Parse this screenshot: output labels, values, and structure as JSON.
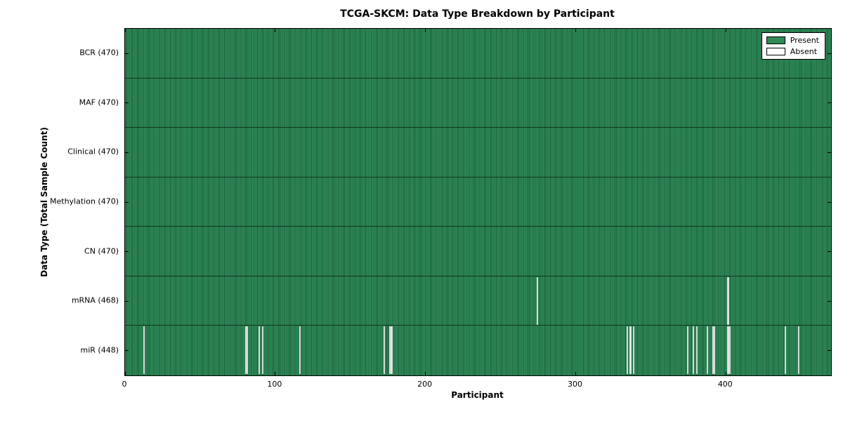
{
  "title": "TCGA-SKCM: Data Type Breakdown by Participant",
  "axes": {
    "xlabel": "Participant",
    "ylabel": "Data Type (Total Sample Count)"
  },
  "legend": {
    "present_label": "Present",
    "absent_label": "Absent"
  },
  "colors": {
    "present_fill": "#2e8b57",
    "present_edge": "#1d5e3c",
    "absent_fill": "#ebebeb",
    "row_border": "#12351f"
  },
  "chart_data": {
    "type": "heatmap",
    "title": "TCGA-SKCM: Data Type Breakdown by Participant",
    "xlabel": "Participant",
    "ylabel": "Data Type (Total Sample Count)",
    "x_range": [
      0,
      470
    ],
    "x_ticks": [
      0,
      100,
      200,
      300,
      400
    ],
    "grid": false,
    "legend_position": "upper right",
    "legend_entries": [
      "Present",
      "Absent"
    ],
    "rows": [
      {
        "label": "BCR (470)",
        "name": "BCR",
        "present_count": 470,
        "absent_participants": []
      },
      {
        "label": "MAF (470)",
        "name": "MAF",
        "present_count": 470,
        "absent_participants": []
      },
      {
        "label": "Clinical (470)",
        "name": "Clinical",
        "present_count": 470,
        "absent_participants": []
      },
      {
        "label": "Methylation (470)",
        "name": "Methylation",
        "present_count": 470,
        "absent_participants": []
      },
      {
        "label": "CN (470)",
        "name": "CN",
        "present_count": 470,
        "absent_participants": []
      },
      {
        "label": "mRNA (468)",
        "name": "mRNA",
        "present_count": 468,
        "absent_participants": [
          274,
          401
        ]
      },
      {
        "label": "miR (448)",
        "name": "miR",
        "present_count": 448,
        "absent_participants": [
          12,
          80,
          81,
          89,
          91,
          116,
          172,
          176,
          177,
          334,
          336,
          338,
          374,
          378,
          380,
          387,
          391,
          392,
          401,
          402,
          439,
          448
        ]
      }
    ]
  }
}
